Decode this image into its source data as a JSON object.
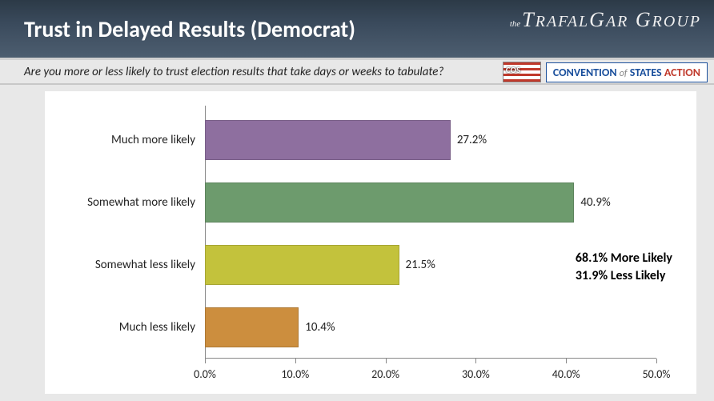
{
  "header": {
    "title": "Trust in Delayed Results (Democrat)",
    "logo_text": "TRAFALGAR GROUP",
    "logo_prefix": "the"
  },
  "subheader": {
    "question": "Are you more or less likely to trust election results that take days or weeks to tabulate?",
    "cos_flag_label": "COS",
    "cos_text_1": "CONVENTION",
    "cos_of": "of",
    "cos_text_2": "STATES",
    "cos_text_3": "ACTION"
  },
  "chart": {
    "type": "bar-horizontal",
    "xlim": [
      0,
      50
    ],
    "xtick_step": 10,
    "xtick_labels": [
      "0.0%",
      "10.0%",
      "20.0%",
      "30.0%",
      "40.0%",
      "50.0%"
    ],
    "background_color": "#ffffff",
    "axis_color": "#888888",
    "label_fontsize": 15,
    "tick_fontsize": 14,
    "value_fontsize": 15,
    "bars": [
      {
        "label": "Much more likely",
        "value": 27.2,
        "value_label": "27.2%",
        "color": "#8e6f9f"
      },
      {
        "label": "Somewhat more likely",
        "value": 40.9,
        "value_label": "40.9%",
        "color": "#6d9b6d"
      },
      {
        "label": "Somewhat less likely",
        "value": 21.5,
        "value_label": "21.5%",
        "color": "#c3c23c"
      },
      {
        "label": "Much less likely",
        "value": 10.4,
        "value_label": "10.4%",
        "color": "#cc8e3e"
      }
    ]
  },
  "summary": {
    "more": "68.1% More Likely",
    "less": "31.9% Less Likely"
  }
}
